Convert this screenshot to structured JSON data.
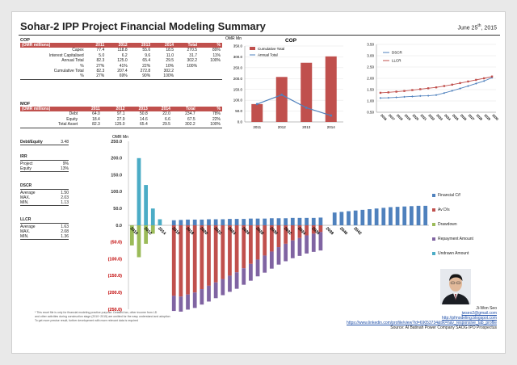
{
  "header": {
    "title": "Sohar-2 IPP Project Financial Modeling Summary",
    "date": "June 25",
    "date_sup": "th",
    "date_year": ", 2015"
  },
  "cop_table": {
    "title": "COP",
    "unit": "(OMR millions)",
    "years": [
      "2011",
      "2012",
      "2013",
      "2014",
      "Total",
      "%"
    ],
    "rows": [
      {
        "label": "Capex",
        "values": [
          "77.4",
          "118.8",
          "55.6",
          "18.5",
          "270.5",
          "89%"
        ]
      },
      {
        "label": "Interest Capitalised",
        "values": [
          "5.0",
          "6.2",
          "9.6",
          "11.0",
          "31.7",
          "11%"
        ]
      },
      {
        "label": "Annual Total",
        "values": [
          "82.3",
          "125.0",
          "65.4",
          "29.5",
          "302.2",
          "100%"
        ]
      },
      {
        "label": "%",
        "values": [
          "27%",
          "41%",
          "22%",
          "10%",
          "100%",
          ""
        ]
      },
      {
        "label": "Cumulative Total",
        "values": [
          "82.3",
          "207.4",
          "272.8",
          "302.2",
          "",
          ""
        ]
      },
      {
        "label": "%",
        "values": [
          "27%",
          "69%",
          "90%",
          "100%",
          "",
          ""
        ]
      }
    ]
  },
  "mof_table": {
    "title": "MOF",
    "unit": "(OMR millions)",
    "years": [
      "2011",
      "2012",
      "2013",
      "2014",
      "Total",
      "%"
    ],
    "rows": [
      {
        "label": "Debt",
        "values": [
          "64.0",
          "97.1",
          "50.8",
          "22.0",
          "234.7",
          "78%"
        ]
      },
      {
        "label": "Equity",
        "values": [
          "18.4",
          "27.9",
          "14.6",
          "6.6",
          "67.5",
          "22%"
        ]
      },
      {
        "label": "Total Asset",
        "values": [
          "82.3",
          "125.0",
          "65.4",
          "29.5",
          "302.2",
          "100%"
        ]
      }
    ]
  },
  "ratios": {
    "debt_equity": {
      "label": "Debt/Equity",
      "value": "3.48"
    },
    "irr": {
      "title": "IRR",
      "rows": [
        {
          "label": "Project",
          "value": "9%"
        },
        {
          "label": "Equity",
          "value": "13%"
        }
      ]
    },
    "dscr": {
      "title": "DSCR",
      "rows": [
        {
          "label": "Average",
          "value": "1.50"
        },
        {
          "label": "MAX.",
          "value": "2.03"
        },
        {
          "label": "MIN.",
          "value": "1.13"
        }
      ]
    },
    "llcr": {
      "title": "LLCR",
      "rows": [
        {
          "label": "Average",
          "value": "1.63"
        },
        {
          "label": "MAX.",
          "value": "2.08"
        },
        {
          "label": "MIN.",
          "value": "1.36"
        }
      ]
    }
  },
  "chart_data": [
    {
      "type": "bar",
      "title": "COP",
      "ylabel": "OMR Mn",
      "categories": [
        "2011",
        "2012",
        "2013",
        "2014"
      ],
      "ylim": [
        0,
        350
      ],
      "yticks": [
        "0.0",
        "50.0",
        "100.0",
        "150.0",
        "200.0",
        "250.0",
        "300.0",
        "350.0"
      ],
      "series": [
        {
          "name": "Cumulative Total",
          "kind": "bar",
          "color": "#c0504d",
          "values": [
            82.3,
            207.4,
            272.8,
            302.2
          ]
        },
        {
          "name": "Annual Total",
          "kind": "line",
          "color": "#4f81bd",
          "values": [
            82.3,
            125.0,
            65.4,
            29.5
          ]
        }
      ],
      "legend": "top-left"
    },
    {
      "type": "line",
      "categories": [
        "2016",
        "2017",
        "2018",
        "2019",
        "2020",
        "2021",
        "2022",
        "2023",
        "2024",
        "2025",
        "2026",
        "2027",
        "2028",
        "2029",
        "2030"
      ],
      "ylim": [
        0.5,
        3.5
      ],
      "yticks": [
        "0.50",
        "1.00",
        "1.50",
        "2.00",
        "2.50",
        "3.00",
        "3.50"
      ],
      "series": [
        {
          "name": "DSCR",
          "color": "#4f81bd",
          "values": [
            1.13,
            1.14,
            1.16,
            1.18,
            1.2,
            1.22,
            1.23,
            1.26,
            1.35,
            1.45,
            1.55,
            1.66,
            1.77,
            1.88,
            2.03
          ]
        },
        {
          "name": "LLCR",
          "color": "#c0504d",
          "values": [
            1.36,
            1.38,
            1.41,
            1.44,
            1.48,
            1.52,
            1.56,
            1.6,
            1.66,
            1.72,
            1.79,
            1.86,
            1.93,
            2.0,
            2.08
          ]
        }
      ],
      "legend": "top-left"
    },
    {
      "type": "bar",
      "ylabel": "OMR Mn",
      "ylim": [
        -250,
        250
      ],
      "yticks": [
        "250.0",
        "200.0",
        "150.0",
        "100.0",
        "50.0",
        "0.0",
        "(50.0)",
        "(100.0)",
        "(150.0)",
        "(200.0)",
        "(250.0)"
      ],
      "x_tick_labels": [
        "2010",
        "2012",
        "2014",
        "2016",
        "2018",
        "2020",
        "2022",
        "2024",
        "2026",
        "2028",
        "2030",
        "2032",
        "2034",
        "2036",
        "2038",
        "2040",
        "2042"
      ],
      "x_start": 2010,
      "series": [
        {
          "name": "Financial C/f",
          "color": "#4f81bd",
          "values": [
            0,
            0,
            0,
            0,
            0,
            0,
            15,
            16,
            17,
            17,
            17,
            18,
            18,
            18,
            19,
            19,
            19,
            20,
            20,
            20,
            21,
            21,
            21,
            22,
            22,
            22,
            22,
            23,
            0,
            38,
            40,
            42,
            44,
            46,
            48,
            50,
            52,
            54,
            55,
            56,
            57,
            58,
            58
          ]
        },
        {
          "name": "Av D/s",
          "color": "#c0504d",
          "values": [
            0,
            0,
            0,
            0,
            0,
            0,
            -210,
            -212,
            -206,
            -200,
            -190,
            -180,
            -170,
            -160,
            -150,
            -140,
            -128,
            -115,
            -102,
            -90,
            -78,
            -65,
            -55,
            -45,
            -38,
            -30,
            -25,
            -20,
            0,
            0,
            0,
            0,
            0,
            0,
            0,
            0,
            0,
            0,
            0,
            0,
            0,
            0,
            0
          ]
        },
        {
          "name": "Drawdown",
          "color": "#9bbb59",
          "values": [
            -60,
            -95,
            -55,
            -25,
            0,
            0,
            0,
            0,
            0,
            0,
            0,
            0,
            0,
            0,
            0,
            0,
            0,
            0,
            0,
            0,
            0,
            0,
            0,
            0,
            0,
            0,
            0,
            0,
            0,
            0,
            0,
            0,
            0,
            0,
            0,
            0,
            0,
            0,
            0,
            0,
            0,
            0,
            0
          ]
        },
        {
          "name": "Repayment Amount",
          "color": "#8064a2",
          "values": [
            0,
            0,
            0,
            0,
            0,
            0,
            -45,
            -45,
            -45,
            -46,
            -46,
            -47,
            -47,
            -48,
            -48,
            -49,
            -49,
            -50,
            -50,
            -51,
            -51,
            -52,
            -52,
            -53,
            -53,
            -54,
            -54,
            -55,
            0,
            0,
            0,
            0,
            0,
            0,
            0,
            0,
            0,
            0,
            0,
            0,
            0,
            0,
            0
          ]
        },
        {
          "name": "Undrawn Amount",
          "color": "#4bacc6",
          "values": [
            0,
            200,
            120,
            50,
            18,
            0,
            0,
            0,
            0,
            0,
            0,
            0,
            0,
            0,
            0,
            0,
            0,
            0,
            0,
            0,
            0,
            0,
            0,
            0,
            0,
            0,
            0,
            0,
            0,
            0,
            0,
            0,
            0,
            0,
            0,
            0,
            0,
            0,
            0,
            0,
            0,
            0,
            0
          ]
        }
      ],
      "legend": "right"
    }
  ],
  "footnote": {
    "line1": "This excel file is only for financial modeling practice purpose. Detailed tax, other income from LD",
    "line2": "and other activities during construction stage (2010~2015) are omitted for the easy understand and adoption",
    "line3": "To get more precise result, further development with more relevant data is required"
  },
  "author": {
    "name": "Ji-Won Seo",
    "email": "jwseo2@gmail.com",
    "blog": "http://pfmodeling.blogspot.com",
    "linkedin": "https://www.linkedin.com/profile/view?id=69053734&trk=nav_responsive_tab_profile",
    "source": "Source: Al Batinah Power Company SAOG IPO Prospectus"
  }
}
